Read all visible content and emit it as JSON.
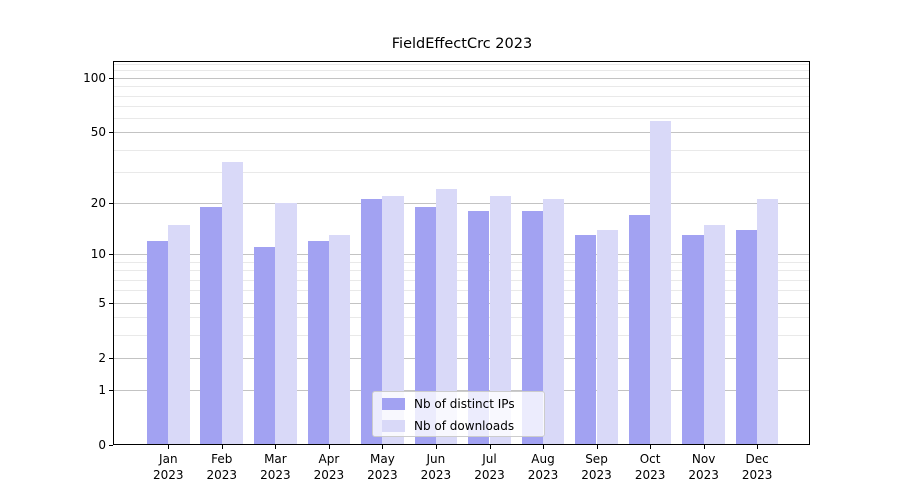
{
  "title": "FieldEffectCrc 2023",
  "chart_data": {
    "type": "bar",
    "title": "FieldEffectCrc 2023",
    "categories": [
      "Jan 2023",
      "Feb 2023",
      "Mar 2023",
      "Apr 2023",
      "May 2023",
      "Jun 2023",
      "Jul 2023",
      "Aug 2023",
      "Sep 2023",
      "Oct 2023",
      "Nov 2023",
      "Dec 2023"
    ],
    "series": [
      {
        "name": "Nb of distinct IPs",
        "color": "#a2a2f2",
        "values": [
          12,
          19,
          11,
          12,
          21,
          19,
          18,
          18,
          13,
          17,
          13,
          14
        ]
      },
      {
        "name": "Nb of downloads",
        "color": "#d9d9f8",
        "values": [
          15,
          34,
          20,
          13,
          22,
          24,
          22,
          21,
          14,
          58,
          15,
          21
        ]
      }
    ],
    "xlabel": "",
    "ylabel": "",
    "yscale": "log1p",
    "yticks": [
      0,
      1,
      2,
      5,
      10,
      20,
      50,
      100
    ],
    "minor_yticks": [
      3,
      4,
      6,
      7,
      8,
      9,
      30,
      40,
      60,
      70,
      80,
      90,
      110,
      120
    ],
    "ylim": [
      0,
      124
    ],
    "grid": true,
    "legend_position": "lower center"
  }
}
